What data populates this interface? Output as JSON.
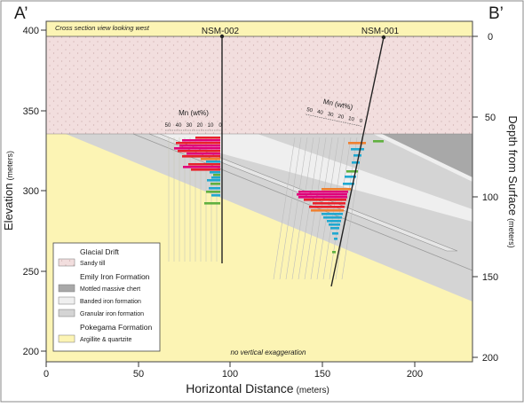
{
  "corner_labels": {
    "left": "A’",
    "right": "B’"
  },
  "header_note": "Cross section view looking west",
  "footer_note": "no vertical exaggeration",
  "wells": [
    {
      "name": "NSM-002",
      "mn_label": "Mn (wt%)",
      "mn_ticks": [
        "50",
        "40",
        "30",
        "20",
        "10",
        "0"
      ]
    },
    {
      "name": "NSM-001",
      "mn_label": "Mn (wt%)",
      "mn_ticks": [
        "50",
        "40",
        "30",
        "20",
        "10",
        "0"
      ]
    }
  ],
  "axes": {
    "y_left_label": "Elevation",
    "y_left_unit": "(meters)",
    "y_left_ticks": [
      "400",
      "350",
      "300",
      "250",
      "200"
    ],
    "y_right_label": "Depth from Surface",
    "y_right_unit": "(meters)",
    "y_right_ticks": [
      "0",
      "50",
      "100",
      "150",
      "200"
    ],
    "x_label": "Horizontal Distance",
    "x_unit": "(meters)",
    "x_ticks": [
      "0",
      "50",
      "100",
      "150",
      "200"
    ]
  },
  "legend": {
    "groups": [
      {
        "title": "Glacial Drift",
        "items": [
          {
            "label": "Sandy till",
            "color": "#f2dede"
          }
        ]
      },
      {
        "title": "Emily Iron Formation",
        "items": [
          {
            "label": "Mottled massive chert",
            "color": "#a8a8a8"
          },
          {
            "label": "Banded iron formation",
            "color": "#efefef"
          },
          {
            "label": "Granular iron formation",
            "color": "#d4d4d4"
          }
        ]
      },
      {
        "title": "Pokegama Formation",
        "items": [
          {
            "label": "Argillite & quartzite",
            "color": "#fcf4b4"
          }
        ]
      }
    ]
  },
  "colors": {
    "till": "#f2dede",
    "chert": "#a8a8a8",
    "banded": "#efefef",
    "granular": "#d4d4d4",
    "argillite": "#fcf4b4",
    "mn_high": "#e0007a",
    "mn_red": "#e8202a",
    "mn_orange": "#f08030",
    "mn_cyan": "#20a8d0",
    "mn_green": "#60b040"
  }
}
